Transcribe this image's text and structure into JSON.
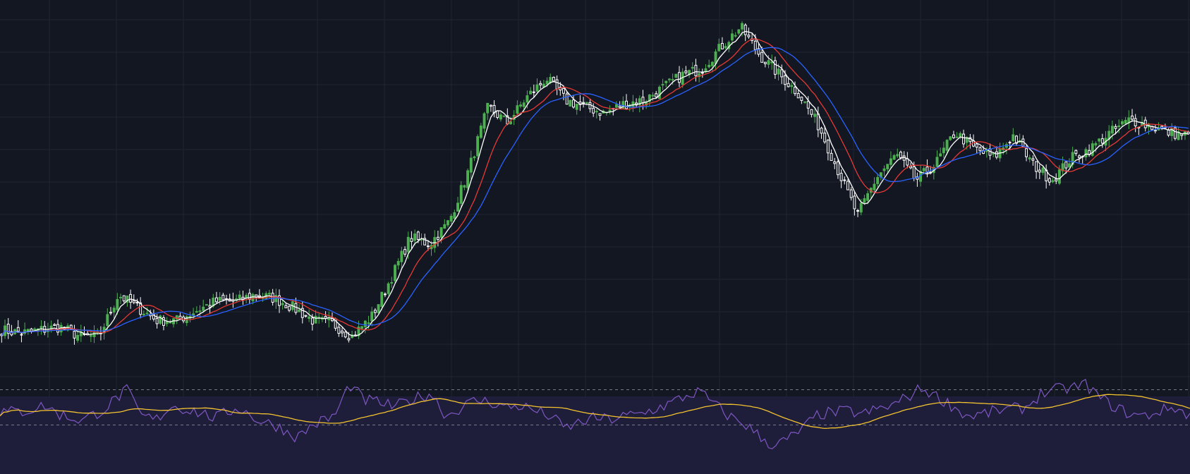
{
  "colors": {
    "background": "#131722",
    "grid": "#1f2433",
    "candle_up": "#4caf50",
    "candle_down": "#ffffff",
    "ma_fast": "#ffffff",
    "ma_mid": "#e53935",
    "ma_slow": "#2962ff",
    "rsi_band_fill": "#1e1d3a",
    "rsi_line": "#7e57c2",
    "rsi_ma_line": "#f2c230",
    "rsi_level_line": "#787b86"
  },
  "chart_data": [
    {
      "type": "candlestick",
      "panel": "price",
      "title": "",
      "xlabel": "",
      "ylabel": "",
      "ylim": [
        0,
        100
      ],
      "grid": true,
      "legend": "none",
      "moving_averages": [
        {
          "color_key": "ma_fast",
          "period": 5
        },
        {
          "color_key": "ma_mid",
          "period": 12
        },
        {
          "color_key": "ma_slow",
          "period": 20
        }
      ],
      "close_anchors": [
        [
          0,
          6
        ],
        [
          10,
          5
        ],
        [
          20,
          6
        ],
        [
          30,
          7
        ],
        [
          40,
          4
        ],
        [
          50,
          4
        ],
        [
          60,
          17
        ],
        [
          70,
          13
        ],
        [
          80,
          9
        ],
        [
          90,
          9
        ],
        [
          100,
          12
        ],
        [
          110,
          15
        ],
        [
          120,
          15
        ],
        [
          130,
          17
        ],
        [
          140,
          16
        ],
        [
          150,
          13
        ],
        [
          160,
          9
        ],
        [
          170,
          8
        ],
        [
          180,
          4
        ],
        [
          190,
          10
        ],
        [
          200,
          22
        ],
        [
          210,
          35
        ],
        [
          220,
          33
        ],
        [
          230,
          40
        ],
        [
          240,
          56
        ],
        [
          250,
          76
        ],
        [
          260,
          71
        ],
        [
          270,
          79
        ],
        [
          280,
          85
        ],
        [
          290,
          78
        ],
        [
          300,
          76
        ],
        [
          310,
          74
        ],
        [
          320,
          77
        ],
        [
          330,
          78
        ],
        [
          340,
          82
        ],
        [
          350,
          86
        ],
        [
          360,
          88
        ],
        [
          370,
          95
        ],
        [
          380,
          101
        ],
        [
          390,
          92
        ],
        [
          400,
          86
        ],
        [
          410,
          80
        ],
        [
          420,
          70
        ],
        [
          430,
          56
        ],
        [
          440,
          42
        ],
        [
          450,
          54
        ],
        [
          460,
          61
        ],
        [
          470,
          53
        ],
        [
          480,
          58
        ],
        [
          490,
          68
        ],
        [
          500,
          63
        ],
        [
          510,
          60
        ],
        [
          520,
          67
        ],
        [
          530,
          58
        ],
        [
          540,
          53
        ],
        [
          550,
          60
        ],
        [
          560,
          63
        ],
        [
          570,
          68
        ],
        [
          580,
          72
        ],
        [
          590,
          70
        ],
        [
          600,
          68
        ],
        [
          610,
          67
        ]
      ],
      "candle_count": 360
    },
    {
      "type": "line",
      "panel": "oscillator",
      "title": "",
      "ylim": [
        0,
        100
      ],
      "levels": [
        70,
        30
      ],
      "series": [
        {
          "key": "oscillator",
          "color_key": "rsi_line",
          "smoothing": "none"
        },
        {
          "key": "signal",
          "color_key": "rsi_ma_line",
          "smoothing": 14
        }
      ],
      "oscillator_anchors": [
        [
          0,
          45
        ],
        [
          3,
          45
        ],
        [
          6,
          52
        ],
        [
          8,
          42
        ],
        [
          11,
          35
        ],
        [
          14,
          48
        ],
        [
          17,
          70
        ],
        [
          19,
          40
        ],
        [
          21,
          36
        ],
        [
          23,
          52
        ],
        [
          26,
          46
        ],
        [
          29,
          38
        ],
        [
          32,
          50
        ],
        [
          35,
          34
        ],
        [
          37,
          30
        ],
        [
          40,
          16
        ],
        [
          42,
          30
        ],
        [
          45,
          40
        ],
        [
          47,
          76
        ],
        [
          49,
          58
        ],
        [
          51,
          56
        ],
        [
          53,
          50
        ],
        [
          55,
          58
        ],
        [
          58,
          66
        ],
        [
          60,
          40
        ],
        [
          62,
          50
        ],
        [
          64,
          58
        ],
        [
          66,
          56
        ],
        [
          68,
          50
        ],
        [
          70,
          52
        ],
        [
          72,
          46
        ],
        [
          74,
          40
        ],
        [
          76,
          26
        ],
        [
          78,
          33
        ],
        [
          80,
          38
        ],
        [
          82,
          36
        ],
        [
          84,
          40
        ],
        [
          86,
          42
        ],
        [
          88,
          48
        ],
        [
          90,
          54
        ],
        [
          92,
          62
        ],
        [
          94,
          68
        ],
        [
          96,
          54
        ],
        [
          98,
          40
        ],
        [
          100,
          32
        ],
        [
          102,
          18
        ],
        [
          104,
          6
        ],
        [
          106,
          14
        ],
        [
          108,
          26
        ],
        [
          110,
          42
        ],
        [
          112,
          44
        ],
        [
          114,
          46
        ],
        [
          116,
          42
        ],
        [
          118,
          48
        ],
        [
          120,
          52
        ],
        [
          122,
          62
        ],
        [
          124,
          72
        ],
        [
          126,
          62
        ],
        [
          128,
          52
        ],
        [
          130,
          40
        ],
        [
          132,
          42
        ],
        [
          134,
          46
        ],
        [
          136,
          48
        ],
        [
          138,
          50
        ],
        [
          140,
          66
        ],
        [
          142,
          70
        ],
        [
          144,
          72
        ],
        [
          146,
          76
        ],
        [
          148,
          60
        ],
        [
          150,
          50
        ],
        [
          152,
          42
        ],
        [
          154,
          40
        ],
        [
          156,
          46
        ],
        [
          158,
          50
        ],
        [
          160,
          40
        ]
      ]
    }
  ]
}
